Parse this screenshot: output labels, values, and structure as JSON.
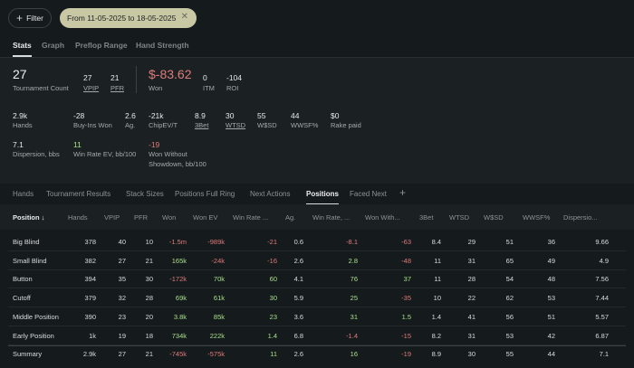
{
  "toolbar": {
    "filter_label": "Filter",
    "date_range": "From 11-05-2025 to 18-05-2025"
  },
  "top_tabs": [
    "Stats",
    "Graph",
    "Preflop Range",
    "Hand Strength"
  ],
  "summary": {
    "tournament_count": {
      "value": "27",
      "label": "Tournament Count"
    },
    "vpip": {
      "value": "27",
      "label": "VPIP"
    },
    "pfr": {
      "value": "21",
      "label": "PFR"
    },
    "won": {
      "value": "$-83.62",
      "label": "Won"
    },
    "itm": {
      "value": "0",
      "label": "ITM"
    },
    "roi": {
      "value": "-104",
      "label": "ROI"
    }
  },
  "stats_row1": [
    {
      "value": "2.9k",
      "label": "Hands"
    },
    {
      "value": "-28",
      "label": "Buy-Ins Won"
    },
    {
      "value": "2.6",
      "label": "Ag."
    },
    {
      "value": "-21k",
      "label": "ChipEV/T"
    },
    {
      "value": "8.9",
      "label": "3Bet"
    },
    {
      "value": "30",
      "label": "WTSD"
    },
    {
      "value": "55",
      "label": "W$SD"
    },
    {
      "value": "44",
      "label": "WWSF%"
    },
    {
      "value": "$0",
      "label": "Rake paid"
    }
  ],
  "stats_row2": [
    {
      "value": "7.1",
      "label": "Dispersion, bbs"
    },
    {
      "value": "11",
      "label": "Win Rate EV, bb/100"
    },
    {
      "value": "-19",
      "label": "Won Without",
      "label2": "Showdown, bb/100"
    }
  ],
  "sub_tabs": [
    "Hands",
    "Tournament Results",
    "Stack Sizes",
    "Positions Full Ring",
    "Next Actions",
    "Positions",
    "Faced Next"
  ],
  "add_tab_icon": "+",
  "table": {
    "headers": [
      "Position ↓",
      "Hands",
      "VPIP",
      "PFR",
      "Won",
      "Won EV",
      "Win Rate ...",
      "Ag.",
      "Win Rate, ...",
      "Won With...",
      "3Bet",
      "WTSD",
      "W$SD",
      "WWSF%",
      "Dispersio..."
    ],
    "rows": [
      [
        "Big Blind",
        "378",
        "40",
        "10",
        "-1.5m",
        "-989k",
        "-21",
        "0.6",
        "-8.1",
        "-63",
        "8.4",
        "29",
        "51",
        "36",
        "9.66"
      ],
      [
        "Small Blind",
        "382",
        "27",
        "21",
        "165k",
        "-24k",
        "-16",
        "2.6",
        "2.8",
        "-48",
        "11",
        "31",
        "65",
        "49",
        "4.9"
      ],
      [
        "Button",
        "394",
        "35",
        "30",
        "-172k",
        "70k",
        "60",
        "4.1",
        "76",
        "37",
        "11",
        "28",
        "54",
        "48",
        "7.56"
      ],
      [
        "Cutoff",
        "379",
        "32",
        "28",
        "69k",
        "61k",
        "30",
        "5.9",
        "25",
        "-35",
        "10",
        "22",
        "62",
        "53",
        "7.44"
      ],
      [
        "Middle Position",
        "390",
        "23",
        "20",
        "3.8k",
        "85k",
        "23",
        "3.6",
        "31",
        "1.5",
        "1.4",
        "41",
        "56",
        "51",
        "5.57"
      ],
      [
        "Early Position",
        "1k",
        "19",
        "18",
        "734k",
        "222k",
        "1.4",
        "6.8",
        "-1.4",
        "-15",
        "8.2",
        "31",
        "53",
        "42",
        "6.87"
      ]
    ],
    "summary_row": [
      "Summary",
      "2.9k",
      "27",
      "21",
      "-745k",
      "-575k",
      "11",
      "2.6",
      "16",
      "-19",
      "8.9",
      "30",
      "55",
      "44",
      "7.1"
    ]
  },
  "colors": {
    "negative": "#e07a7a",
    "positive": "#a8e08a",
    "chip": "#c9c8a4",
    "background": "#151a1c"
  }
}
